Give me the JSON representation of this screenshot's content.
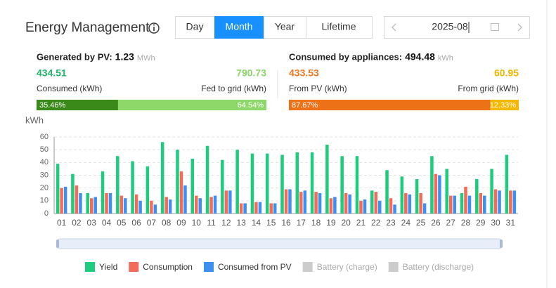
{
  "title": "Energy Management",
  "tabs": [
    "Day",
    "Month",
    "Year",
    "Lifetime"
  ],
  "active_tab": "Month",
  "date": "2025-08",
  "generated": {
    "label": "Generated by PV:",
    "value": 1.23,
    "unit": "MWh",
    "left_value": 434.51,
    "left_label": "Consumed (kWh)",
    "right_value": 790.73,
    "right_label": "Fed to grid (kWh)",
    "shares": [
      {
        "value": 35.46,
        "label": "35.46%"
      },
      {
        "value": 64.54,
        "label": "64.54%"
      }
    ]
  },
  "consumed": {
    "label": "Consumed by appliances:",
    "value": 494.48,
    "unit": "kWh",
    "left_value": 433.53,
    "left_label": "From PV (kWh)",
    "right_value": 60.95,
    "right_label": "From grid (kWh)",
    "shares": [
      {
        "value": 87.67,
        "label": "87.67%"
      },
      {
        "value": 12.33,
        "label": "12.33%"
      }
    ]
  },
  "chart_data": {
    "type": "bar",
    "y_label": "kWh",
    "categories": [
      "01",
      "02",
      "03",
      "04",
      "05",
      "06",
      "07",
      "08",
      "09",
      "10",
      "11",
      "12",
      "13",
      "14",
      "15",
      "16",
      "17",
      "18",
      "19",
      "20",
      "21",
      "22",
      "23",
      "24",
      "25",
      "26",
      "27",
      "28",
      "29",
      "30",
      "31"
    ],
    "series": [
      {
        "name": "Yield",
        "color": "#1fcb7c",
        "values": [
          39,
          31,
          16,
          33,
          45,
          41,
          37,
          56,
          50,
          43,
          53,
          42,
          50,
          47,
          47,
          46,
          48,
          48,
          54,
          45,
          45,
          18,
          34,
          29,
          27,
          45,
          35,
          16,
          27,
          35,
          46
        ]
      },
      {
        "name": "Consumption",
        "color": "#f26b5b",
        "values": [
          20,
          22,
          12,
          16,
          14,
          15,
          10,
          13,
          33,
          14,
          13,
          18,
          8,
          9,
          8,
          19,
          17,
          17,
          12,
          16,
          10,
          17,
          12,
          16,
          16,
          31,
          14,
          21,
          16,
          19,
          18
        ]
      },
      {
        "name": "Consumed from PV",
        "color": "#3d8ff0",
        "values": [
          21,
          16,
          13,
          16,
          12,
          10,
          7,
          11,
          22,
          12,
          14,
          18,
          8,
          9,
          8,
          19,
          18,
          16,
          13,
          15,
          11,
          10,
          7,
          15,
          8,
          30,
          14,
          14,
          14,
          18,
          18
        ]
      },
      {
        "name": "Battery (charge)",
        "color": "#cccccc",
        "values": [
          null,
          null,
          null,
          null,
          null,
          null,
          null,
          null,
          null,
          null,
          null,
          null,
          null,
          null,
          null,
          null,
          null,
          null,
          null,
          null,
          null,
          null,
          null,
          null,
          null,
          null,
          null,
          null,
          null,
          null,
          null
        ]
      },
      {
        "name": "Battery (discharge)",
        "color": "#cccccc",
        "values": [
          null,
          null,
          null,
          null,
          null,
          null,
          null,
          null,
          null,
          null,
          null,
          null,
          null,
          null,
          null,
          null,
          null,
          null,
          null,
          null,
          null,
          null,
          null,
          null,
          null,
          null,
          null,
          null,
          null,
          null,
          null
        ]
      }
    ],
    "ylim": [
      0,
      60
    ],
    "yticks": [
      0,
      10,
      20,
      30,
      40,
      50,
      60
    ],
    "grid": true
  }
}
